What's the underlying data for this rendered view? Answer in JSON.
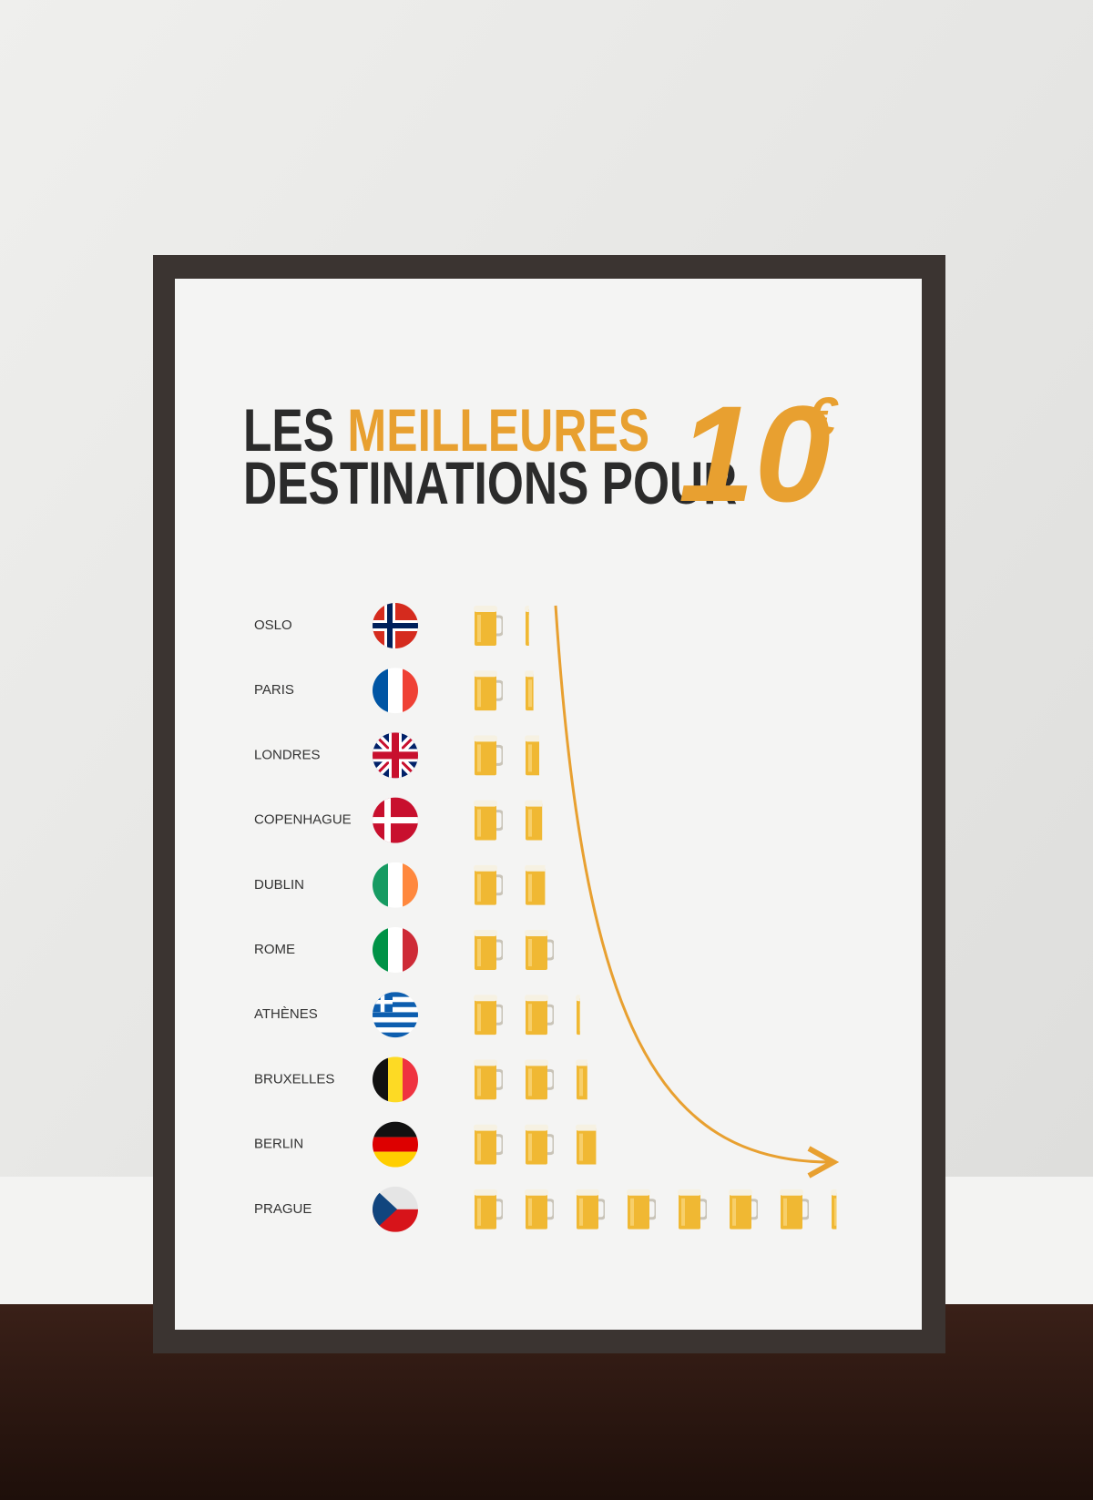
{
  "chart_data": {
    "type": "pictograph",
    "title": {
      "line1_dark": "LES",
      "line1_accent": "MEILLEURES",
      "line2": "DESTINATIONS POUR",
      "amount": "10",
      "currency": "€"
    },
    "categories": [
      "OSLO",
      "PARIS",
      "LONDRES",
      "COPENHAGUE",
      "DUBLIN",
      "ROME",
      "ATHÈNES",
      "BRUXELLES",
      "BERLIN",
      "PRAGUE"
    ],
    "values": [
      1.15,
      1.3,
      1.5,
      1.6,
      1.7,
      2,
      2.15,
      2.4,
      2.7,
      7.2
    ],
    "color": "#f0b833"
  }
}
